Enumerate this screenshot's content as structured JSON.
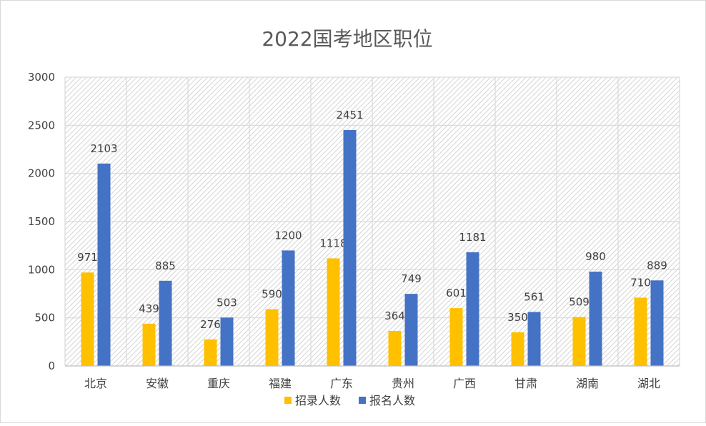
{
  "chart_data": {
    "type": "bar",
    "title": "2022国考地区职位",
    "categories": [
      "北京",
      "安徽",
      "重庆",
      "福建",
      "广东",
      "贵州",
      "广西",
      "甘肃",
      "湖南",
      "湖北"
    ],
    "series": [
      {
        "name": "招录人数",
        "color": "#FFC000",
        "values": [
          971,
          439,
          276,
          590,
          1118,
          364,
          601,
          350,
          509,
          710
        ]
      },
      {
        "name": "报名人数",
        "color": "#4472C4",
        "values": [
          2103,
          885,
          503,
          1200,
          2451,
          749,
          1181,
          561,
          980,
          889
        ]
      }
    ],
    "ylim": [
      0,
      3000
    ],
    "yticks": [
      "0",
      "500",
      "1000",
      "1500",
      "2000",
      "2500",
      "3000"
    ],
    "grid": true,
    "plot_background": "hatched",
    "legend_position": "bottom",
    "data_labels": true
  }
}
